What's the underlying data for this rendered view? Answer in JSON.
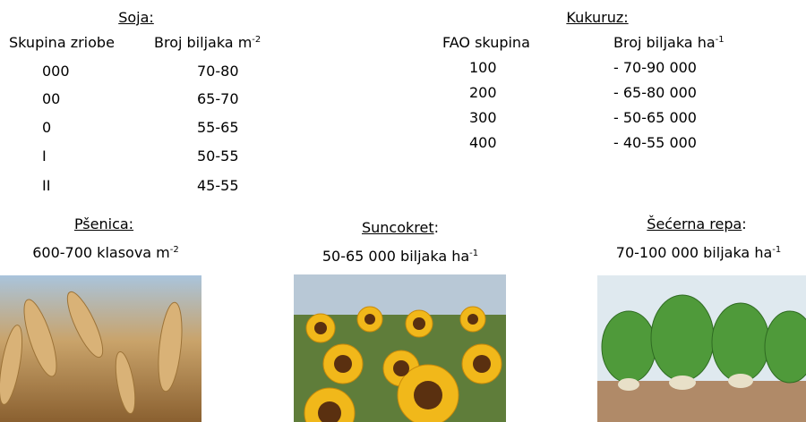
{
  "soja": {
    "title": "Soja:",
    "headers": [
      {
        "text": "Skupina zriobe"
      },
      {
        "text": "Broj biljaka m",
        "sup": "-2"
      }
    ],
    "rows": [
      [
        "000",
        "70-80"
      ],
      [
        "00",
        "65-70"
      ],
      [
        "0",
        "55-65"
      ],
      [
        "I",
        "50-55"
      ],
      [
        "II",
        "45-55"
      ]
    ]
  },
  "kukuruz": {
    "title": "Kukuruz:",
    "headers": [
      {
        "text": "FAO skupina"
      },
      {
        "text": "Broj biljaka ha",
        "sup": "-1"
      }
    ],
    "rows": [
      [
        "100",
        "- 70-90 000"
      ],
      [
        "200",
        "- 65-80 000"
      ],
      [
        "300",
        "- 50-65 000"
      ],
      [
        "400",
        "- 40-55 000"
      ]
    ]
  },
  "crops": [
    {
      "name": "Pšenica:",
      "density": {
        "text": "600-700 klasova m",
        "sup": "-2"
      }
    },
    {
      "name": "Suncokret",
      "suffix": ":",
      "density": {
        "text": "50-65 000 biljaka ha",
        "sup": "-1"
      }
    },
    {
      "name": "Šećerna repa",
      "suffix": ":",
      "density": {
        "text": "70-100 000 biljaka ha",
        "sup": "-1"
      }
    }
  ]
}
